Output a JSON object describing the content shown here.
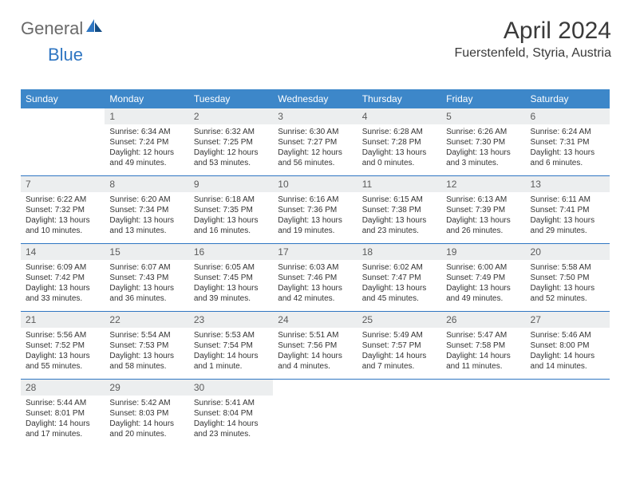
{
  "logo": {
    "part1": "General",
    "part2": "Blue"
  },
  "header": {
    "month": "April 2024",
    "location": "Fuerstenfeld, Styria, Austria"
  },
  "style": {
    "accent": "#3d87c9",
    "rule": "#2f76c2",
    "dayband": "#eceeef"
  },
  "weekdays": [
    "Sunday",
    "Monday",
    "Tuesday",
    "Wednesday",
    "Thursday",
    "Friday",
    "Saturday"
  ],
  "days": [
    null,
    {
      "n": "1",
      "sr": "6:34 AM",
      "ss": "7:24 PM",
      "dl": "12 hours and 49 minutes."
    },
    {
      "n": "2",
      "sr": "6:32 AM",
      "ss": "7:25 PM",
      "dl": "12 hours and 53 minutes."
    },
    {
      "n": "3",
      "sr": "6:30 AM",
      "ss": "7:27 PM",
      "dl": "12 hours and 56 minutes."
    },
    {
      "n": "4",
      "sr": "6:28 AM",
      "ss": "7:28 PM",
      "dl": "13 hours and 0 minutes."
    },
    {
      "n": "5",
      "sr": "6:26 AM",
      "ss": "7:30 PM",
      "dl": "13 hours and 3 minutes."
    },
    {
      "n": "6",
      "sr": "6:24 AM",
      "ss": "7:31 PM",
      "dl": "13 hours and 6 minutes."
    },
    {
      "n": "7",
      "sr": "6:22 AM",
      "ss": "7:32 PM",
      "dl": "13 hours and 10 minutes."
    },
    {
      "n": "8",
      "sr": "6:20 AM",
      "ss": "7:34 PM",
      "dl": "13 hours and 13 minutes."
    },
    {
      "n": "9",
      "sr": "6:18 AM",
      "ss": "7:35 PM",
      "dl": "13 hours and 16 minutes."
    },
    {
      "n": "10",
      "sr": "6:16 AM",
      "ss": "7:36 PM",
      "dl": "13 hours and 19 minutes."
    },
    {
      "n": "11",
      "sr": "6:15 AM",
      "ss": "7:38 PM",
      "dl": "13 hours and 23 minutes."
    },
    {
      "n": "12",
      "sr": "6:13 AM",
      "ss": "7:39 PM",
      "dl": "13 hours and 26 minutes."
    },
    {
      "n": "13",
      "sr": "6:11 AM",
      "ss": "7:41 PM",
      "dl": "13 hours and 29 minutes."
    },
    {
      "n": "14",
      "sr": "6:09 AM",
      "ss": "7:42 PM",
      "dl": "13 hours and 33 minutes."
    },
    {
      "n": "15",
      "sr": "6:07 AM",
      "ss": "7:43 PM",
      "dl": "13 hours and 36 minutes."
    },
    {
      "n": "16",
      "sr": "6:05 AM",
      "ss": "7:45 PM",
      "dl": "13 hours and 39 minutes."
    },
    {
      "n": "17",
      "sr": "6:03 AM",
      "ss": "7:46 PM",
      "dl": "13 hours and 42 minutes."
    },
    {
      "n": "18",
      "sr": "6:02 AM",
      "ss": "7:47 PM",
      "dl": "13 hours and 45 minutes."
    },
    {
      "n": "19",
      "sr": "6:00 AM",
      "ss": "7:49 PM",
      "dl": "13 hours and 49 minutes."
    },
    {
      "n": "20",
      "sr": "5:58 AM",
      "ss": "7:50 PM",
      "dl": "13 hours and 52 minutes."
    },
    {
      "n": "21",
      "sr": "5:56 AM",
      "ss": "7:52 PM",
      "dl": "13 hours and 55 minutes."
    },
    {
      "n": "22",
      "sr": "5:54 AM",
      "ss": "7:53 PM",
      "dl": "13 hours and 58 minutes."
    },
    {
      "n": "23",
      "sr": "5:53 AM",
      "ss": "7:54 PM",
      "dl": "14 hours and 1 minute."
    },
    {
      "n": "24",
      "sr": "5:51 AM",
      "ss": "7:56 PM",
      "dl": "14 hours and 4 minutes."
    },
    {
      "n": "25",
      "sr": "5:49 AM",
      "ss": "7:57 PM",
      "dl": "14 hours and 7 minutes."
    },
    {
      "n": "26",
      "sr": "5:47 AM",
      "ss": "7:58 PM",
      "dl": "14 hours and 11 minutes."
    },
    {
      "n": "27",
      "sr": "5:46 AM",
      "ss": "8:00 PM",
      "dl": "14 hours and 14 minutes."
    },
    {
      "n": "28",
      "sr": "5:44 AM",
      "ss": "8:01 PM",
      "dl": "14 hours and 17 minutes."
    },
    {
      "n": "29",
      "sr": "5:42 AM",
      "ss": "8:03 PM",
      "dl": "14 hours and 20 minutes."
    },
    {
      "n": "30",
      "sr": "5:41 AM",
      "ss": "8:04 PM",
      "dl": "14 hours and 23 minutes."
    },
    null,
    null,
    null,
    null
  ],
  "labels": {
    "sunrise": "Sunrise: ",
    "sunset": "Sunset: ",
    "daylight": "Daylight: "
  }
}
